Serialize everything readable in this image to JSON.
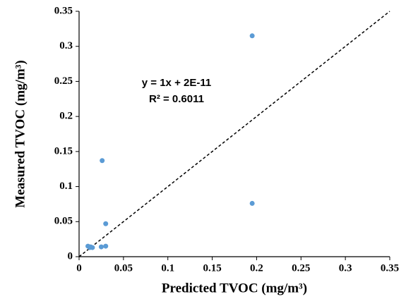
{
  "chart_data": {
    "type": "scatter",
    "x_label": "Predicted TVOC (mg/m³)",
    "y_label": "Measured TVOC (mg/m³)",
    "series": [
      {
        "color": "#5b9bd5",
        "x": [
          0.195,
          0.195,
          0.026,
          0.03,
          0.03,
          0.025,
          0.01,
          0.013,
          0.015,
          0.012
        ],
        "values": [
          0.315,
          0.076,
          0.137,
          0.047,
          0.015,
          0.014,
          0.015,
          0.014,
          0.013,
          0.013
        ]
      }
    ],
    "trendline": {
      "slope": 1,
      "intercept": 2e-11,
      "equation": "y = 1x + 2E-11",
      "r_squared": "R² = 0.6011"
    },
    "xlim": [
      0,
      0.35
    ],
    "ylim": [
      0,
      0.35
    ],
    "xticks": [
      0,
      0.05,
      0.1,
      0.15,
      0.2,
      0.25,
      0.3,
      0.35
    ],
    "yticks": [
      0,
      0.05,
      0.1,
      0.15,
      0.2,
      0.25,
      0.3,
      0.35
    ],
    "grid": false
  }
}
